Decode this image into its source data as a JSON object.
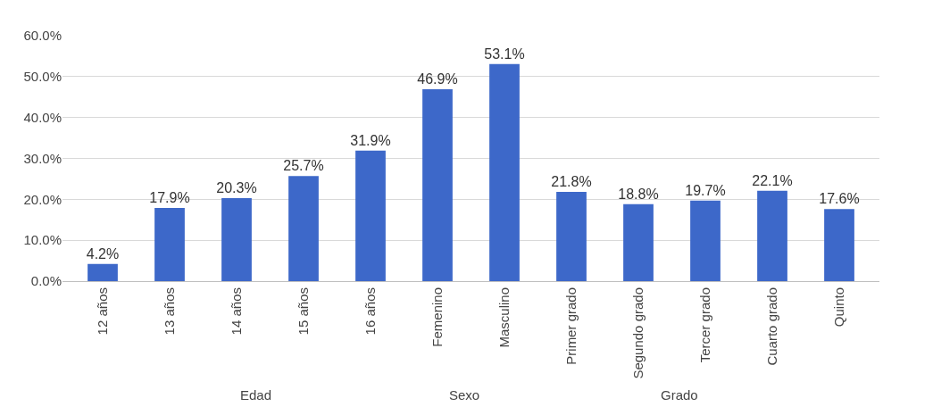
{
  "chart_data": {
    "type": "bar",
    "categories": [
      "12 años",
      "13 años",
      "14 años",
      "15 años",
      "16 años",
      "Femenino",
      "Masculino",
      "Primer grado",
      "Segundo grado",
      "Tercer grado",
      "Cuarto grado",
      "Quinto"
    ],
    "values": [
      4.2,
      17.9,
      20.3,
      25.7,
      31.9,
      46.9,
      53.1,
      21.8,
      18.8,
      19.7,
      22.1,
      17.6
    ],
    "value_labels": [
      "4.2%",
      "17.9%",
      "20.3%",
      "25.7%",
      "31.9%",
      "46.9%",
      "53.1%",
      "21.8%",
      "18.8%",
      "19.7%",
      "22.1%",
      "17.6%"
    ],
    "color": "#3d68c9",
    "ylim": [
      0,
      60
    ],
    "yticks": [
      {
        "value": 0,
        "label": "0.0%"
      },
      {
        "value": 10,
        "label": "10.0%"
      },
      {
        "value": 20,
        "label": "20.0%"
      },
      {
        "value": 30,
        "label": "30.0%"
      },
      {
        "value": 40,
        "label": "40.0%"
      },
      {
        "value": 50,
        "label": "50.0%"
      },
      {
        "value": 60,
        "label": "60.0%"
      }
    ],
    "grid": "y",
    "annotations": [
      "Edad",
      "Sexo",
      "Grado"
    ]
  }
}
